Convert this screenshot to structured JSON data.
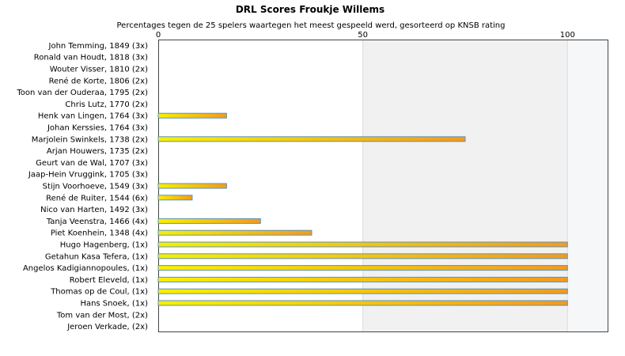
{
  "chart_data": {
    "type": "bar",
    "orientation": "horizontal",
    "title": "DRL Scores Froukje Willems",
    "subtitle": "Percentages tegen de 25 spelers waartegen het meest gespeeld werd, gesorteerd op KNSB rating",
    "xlim": [
      0,
      110
    ],
    "xticks": [
      0,
      50,
      100
    ],
    "grid": true,
    "colors": {
      "bar_start": "#f6f000",
      "bar_end": "#f39a1e",
      "bar_border": "#5a93b8",
      "band": "#f1f1f1",
      "band2": "#f6f7f9"
    },
    "categories": [
      "John Temming, 1849 (3x)",
      "Ronald van Houdt, 1818 (3x)",
      "Wouter Visser, 1810 (2x)",
      "René de Korte, 1806 (2x)",
      "Toon van der Ouderaa, 1795 (2x)",
      "Chris Lutz, 1770 (2x)",
      "Henk van Lingen, 1764 (3x)",
      "Johan Kerssies, 1764 (3x)",
      "Marjolein Swinkels, 1738 (2x)",
      "Arjan Houwers, 1735 (2x)",
      "Geurt van de Wal, 1707 (3x)",
      "Jaap-Hein Vruggink, 1705 (3x)",
      "Stijn Voorhoeve, 1549 (3x)",
      "René de Ruiter, 1544 (6x)",
      "Nico van Harten, 1492 (3x)",
      "Tanja Veenstra, 1466 (4x)",
      "Piet Koenhein, 1348 (4x)",
      "Hugo Hagenberg,  (1x)",
      "Getahun Kasa Tefera,  (1x)",
      "Angelos Kadigiannopoules,  (1x)",
      "Robert Eleveld,  (1x)",
      "Thomas op de Coul,  (1x)",
      "Hans Snoek,  (1x)",
      "Tom van der Most,  (2x)",
      "Jeroen Verkade,  (2x)"
    ],
    "values": [
      0,
      0,
      0,
      0,
      0,
      0,
      16.7,
      0,
      75,
      0,
      0,
      0,
      16.7,
      8.3,
      0,
      25,
      37.5,
      100,
      100,
      100,
      100,
      100,
      100,
      0,
      0
    ]
  }
}
